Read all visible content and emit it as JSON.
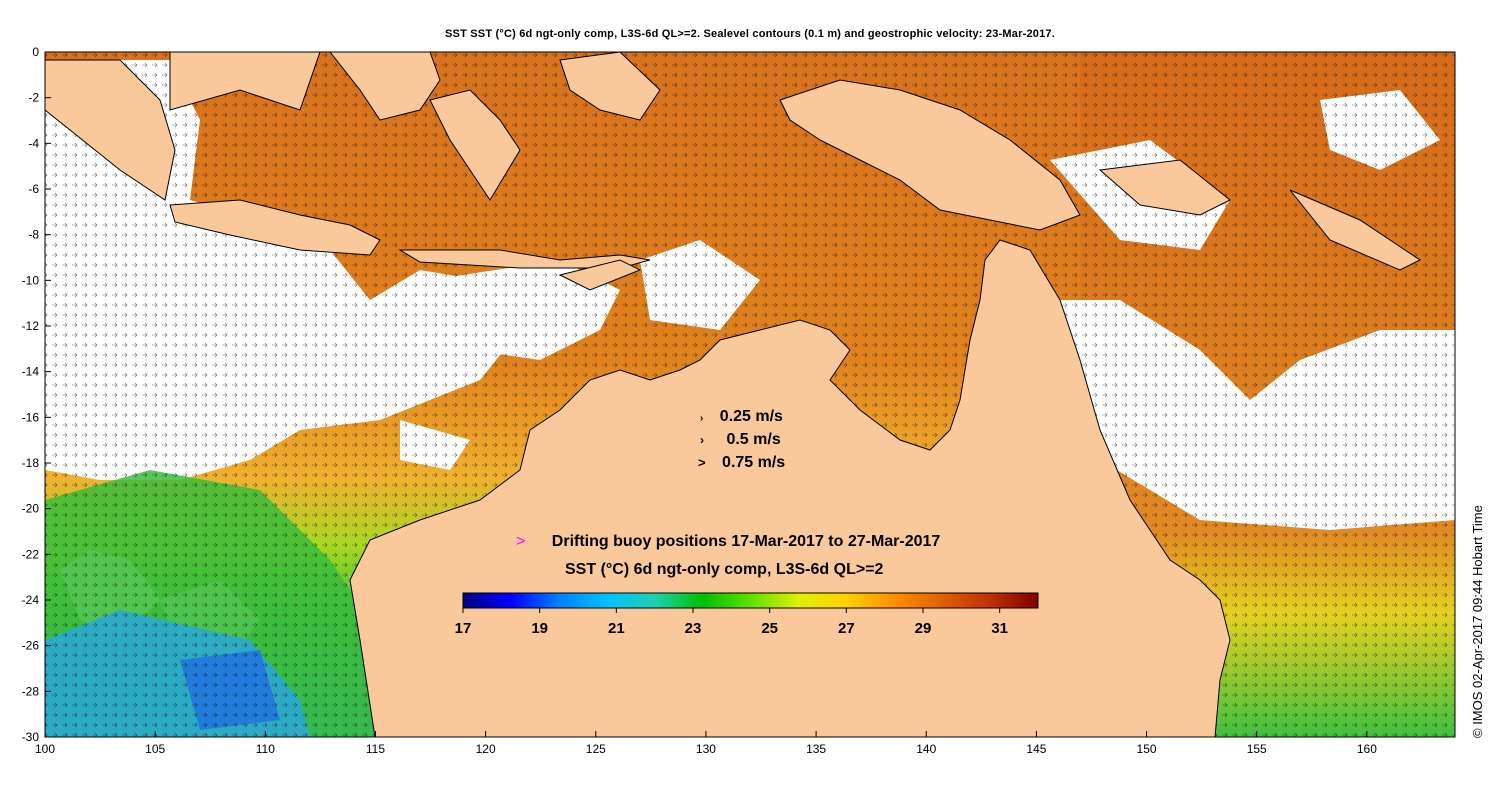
{
  "title": "SST SST (°C) 6d ngt-only comp, L3S-6d QL>=2. Sealevel contours (0.1 m) and geostrophic velocity: 23-Mar-2017.",
  "map": {
    "lon_range": [
      100,
      164
    ],
    "lat_range": [
      -30,
      0
    ],
    "x_ticks": [
      "100",
      "105",
      "110",
      "115",
      "120",
      "125",
      "130",
      "135",
      "140",
      "145",
      "150",
      "155",
      "160"
    ],
    "y_ticks": [
      "0",
      "-2",
      "-4",
      "-6",
      "-8",
      "-10",
      "-12",
      "-14",
      "-16",
      "-18",
      "-20",
      "-22",
      "-24",
      "-26",
      "-28",
      "-30"
    ],
    "land_color": "#f9c99c",
    "ocean_colors": {
      "warm": "#d9731f",
      "hot": "#b9400f",
      "mid": "#f0a020",
      "cool": "#4cc23c",
      "cold": "#28a6d4",
      "missing": "#ffffff"
    }
  },
  "velocity_legend": {
    "entries": [
      {
        "label": "0.25 m/s",
        "arrow": "›"
      },
      {
        "label": "0.5 m/s",
        "arrow": "›"
      },
      {
        "label": "0.75 m/s",
        "arrow": ">"
      }
    ]
  },
  "buoy_legend": {
    "symbol": ">",
    "label": "Drifting buoy positions 17-Mar-2017 to 27-Mar-2017",
    "symbol_color": "#ff00ff"
  },
  "colorbar": {
    "title": "SST (°C) 6d ngt-only comp, L3S-6d QL>=2",
    "min": 17,
    "max": 32,
    "tick_labels": [
      "17",
      "19",
      "21",
      "23",
      "25",
      "27",
      "29",
      "31"
    ],
    "stops": [
      "#00007f",
      "#0000ff",
      "#0080ff",
      "#00c0ff",
      "#20d0b0",
      "#00c000",
      "#60e000",
      "#e0f000",
      "#ffd000",
      "#ff9000",
      "#e06000",
      "#c03000",
      "#800000"
    ]
  },
  "credit": "© IMOS 02-Apr-2017 09:44 Hobart Time"
}
